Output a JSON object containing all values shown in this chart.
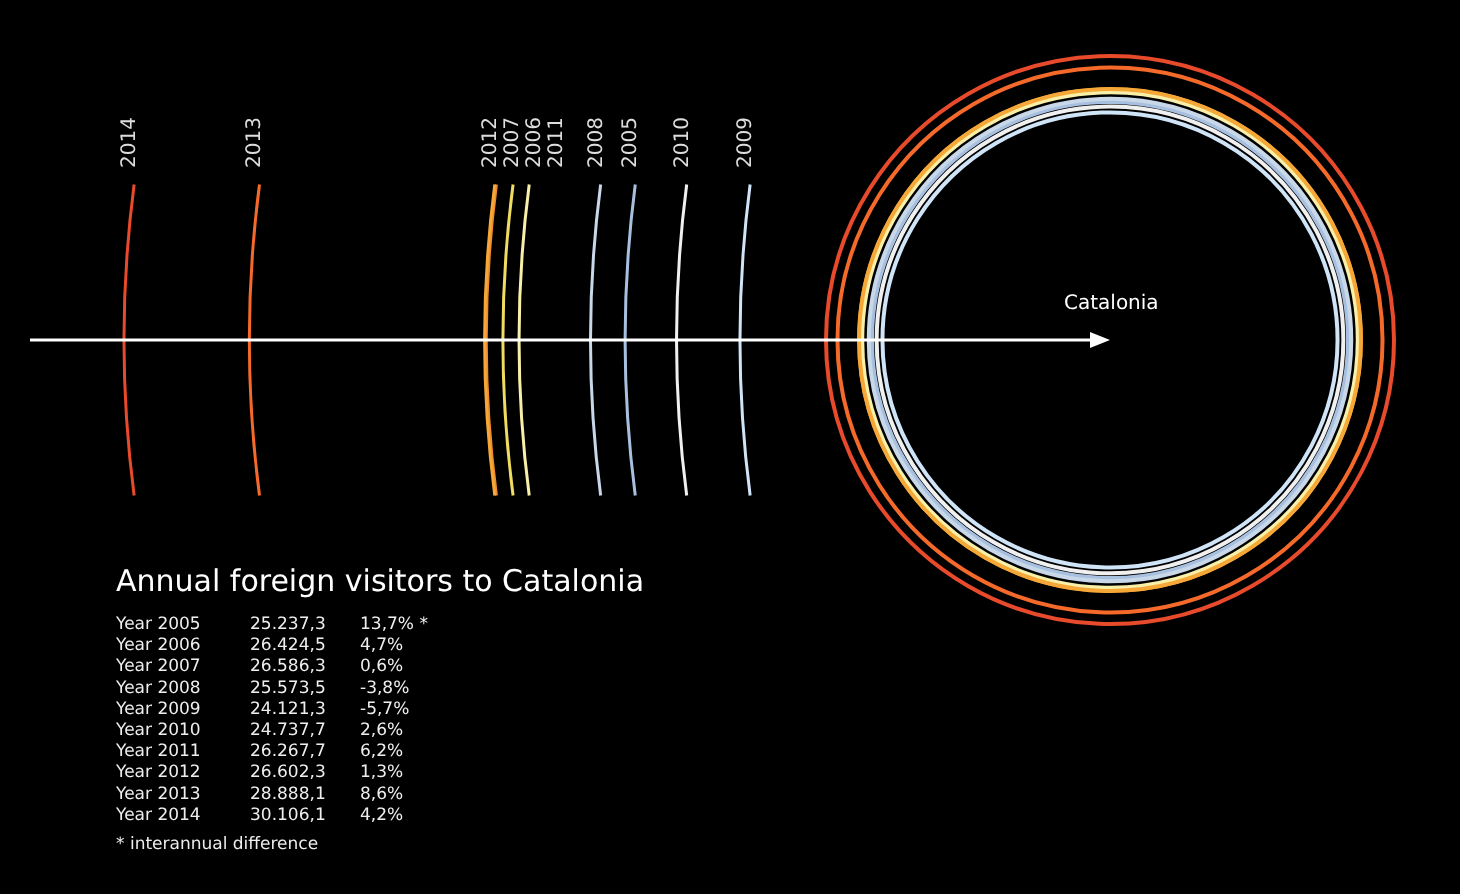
{
  "chart_data": {
    "type": "other",
    "title": "Annual foreign visitors to Catalonia",
    "categories": [
      "Year 2005",
      "Year 2006",
      "Year 2007",
      "Year 2008",
      "Year 2009",
      "Year 2010",
      "Year 2011",
      "Year 2012",
      "Year 2013",
      "Year 2014"
    ],
    "colors": [
      "#a8c0e0",
      "#f0dc60",
      "#f08a30",
      "#c8d8e8",
      "#d0e4f8",
      "#f0f0f0",
      "#f8f0a8",
      "#f5a838",
      "#f56a2a",
      "#e84a2c"
    ],
    "series": [
      {
        "values": [
          25237.3,
          26424.5,
          26586.3,
          25573.5,
          24121.3,
          24737.7,
          26267.7,
          26602.3,
          28888.1,
          30106.1
        ],
        "value_labels": [
          "25.237,3",
          "26.424,5",
          "26.586,3",
          "25.573,5",
          "24.121,3",
          "24.737,7",
          "26.267,7",
          "26.602,3",
          "28.888,1",
          "30.106,1"
        ]
      },
      {
        "values": [
          13.7,
          4.7,
          0.6,
          -3.8,
          -5.7,
          2.6,
          6.2,
          1.3,
          8.6,
          4.2
        ],
        "value_labels": [
          "13,7% *",
          "4,7%",
          "0,6%",
          "-3,8%",
          "-5,7%",
          "2,6%",
          "6,2%",
          "1,3%",
          "8,6%",
          "4,2%"
        ]
      }
    ],
    "annotations": [
      "Catalonia",
      "* interannual difference",
      "2005",
      "2006",
      "2007",
      "2008",
      "2009",
      "2010",
      "2011",
      "2012",
      "2013",
      "2014"
    ]
  }
}
